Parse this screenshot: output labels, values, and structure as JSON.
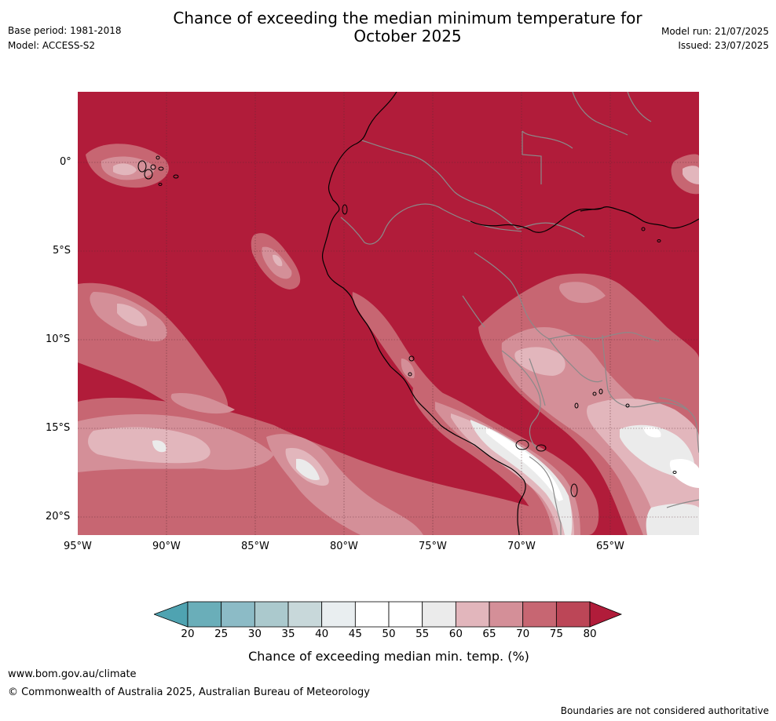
{
  "header": {
    "title_line1": "Chance of exceeding the median minimum temperature for",
    "title_line2": "October 2025",
    "base_period": "Base period: 1981-2018",
    "model": "Model: ACCESS-S2",
    "model_run": "Model run: 21/07/2025",
    "issued": "Issued: 23/07/2025"
  },
  "map": {
    "lat_labels": [
      "0°",
      "5°S",
      "10°S",
      "15°S",
      "20°S"
    ],
    "lon_labels": [
      "95°W",
      "90°W",
      "85°W",
      "80°W",
      "75°W",
      "70°W",
      "65°W"
    ],
    "extent": {
      "lon_min": -95,
      "lon_max": -60,
      "lat_min": -21,
      "lat_max": 4
    },
    "base_color": "#b11c3a"
  },
  "colorbar": {
    "ticks": [
      "20",
      "25",
      "30",
      "35",
      "40",
      "45",
      "50",
      "55",
      "60",
      "65",
      "70",
      "75",
      "80"
    ],
    "colors": [
      "#6aaeb9",
      "#8cbbc6",
      "#abc9cd",
      "#c8d8da",
      "#e9eef0",
      "#ffffff",
      "#ffffff",
      "#ebebeb",
      "#e2b6bc",
      "#d48f98",
      "#c76672",
      "#bc4657"
    ],
    "under_color": "#4fa3b1",
    "over_color": "#b11c3a",
    "title": "Chance of exceeding median min. temp. (%)"
  },
  "footer": {
    "url": "www.bom.gov.au/climate",
    "copyright": "© Commonwealth of Australia 2025, Australian Bureau of Meteorology",
    "boundaries_note": "Boundaries are not considered authoritative"
  }
}
